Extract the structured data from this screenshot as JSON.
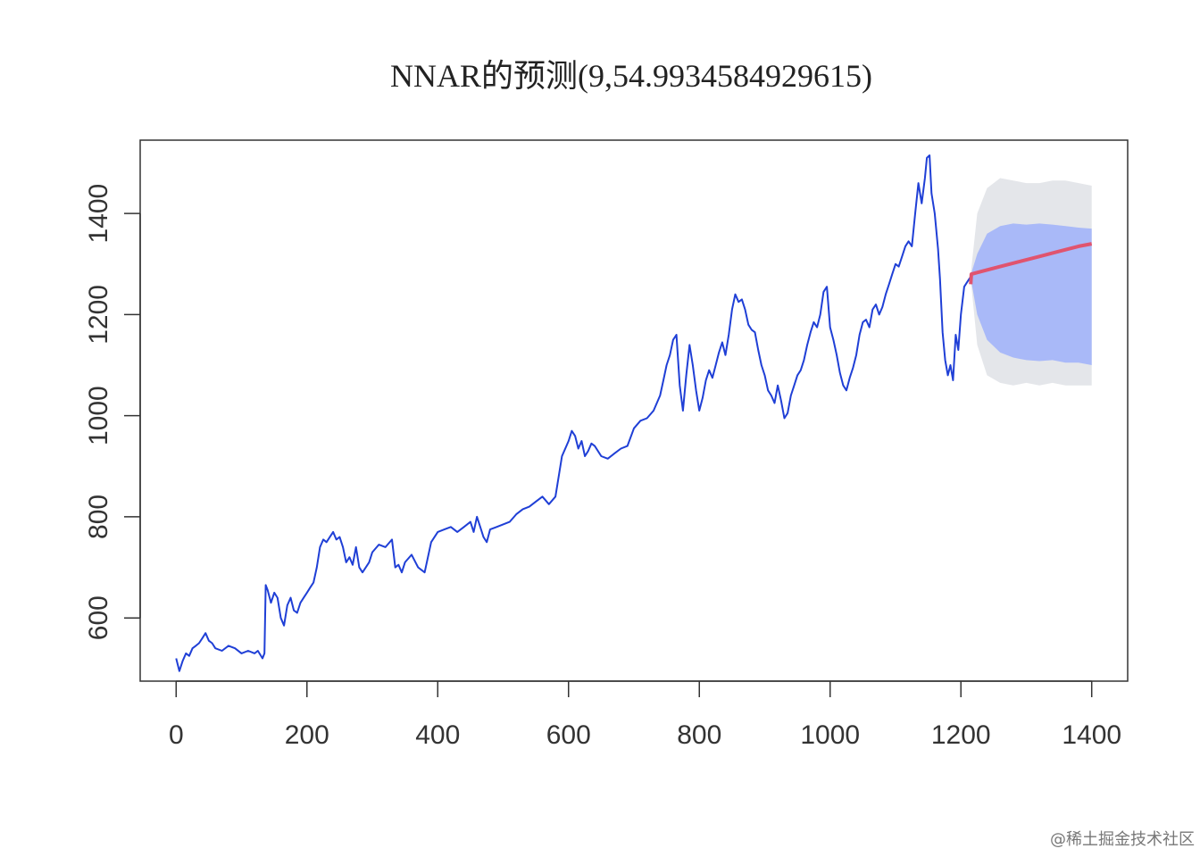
{
  "chart_data": {
    "type": "line",
    "title": "NNAR的预测(9,54.9934584929615)",
    "xlabel": "",
    "ylabel": "",
    "xlim": [
      -55,
      1455
    ],
    "ylim": [
      475,
      1545
    ],
    "x_ticks": [
      0,
      200,
      400,
      600,
      800,
      1000,
      1200,
      1400
    ],
    "y_ticks": [
      600,
      800,
      1000,
      1200,
      1400
    ],
    "grid": false,
    "legend": "none",
    "series": [
      {
        "role": "observed",
        "color": "#1f3fd6",
        "points": [
          [
            0,
            520
          ],
          [
            5,
            495
          ],
          [
            10,
            515
          ],
          [
            15,
            530
          ],
          [
            20,
            525
          ],
          [
            25,
            540
          ],
          [
            30,
            545
          ],
          [
            35,
            550
          ],
          [
            40,
            560
          ],
          [
            45,
            570
          ],
          [
            50,
            555
          ],
          [
            55,
            550
          ],
          [
            60,
            540
          ],
          [
            70,
            535
          ],
          [
            80,
            545
          ],
          [
            90,
            540
          ],
          [
            100,
            530
          ],
          [
            110,
            535
          ],
          [
            120,
            530
          ],
          [
            125,
            535
          ],
          [
            132,
            520
          ],
          [
            135,
            530
          ],
          [
            137,
            665
          ],
          [
            140,
            655
          ],
          [
            145,
            630
          ],
          [
            150,
            650
          ],
          [
            155,
            640
          ],
          [
            160,
            600
          ],
          [
            165,
            585
          ],
          [
            170,
            625
          ],
          [
            175,
            640
          ],
          [
            180,
            615
          ],
          [
            185,
            610
          ],
          [
            190,
            630
          ],
          [
            195,
            640
          ],
          [
            200,
            650
          ],
          [
            205,
            660
          ],
          [
            210,
            670
          ],
          [
            215,
            700
          ],
          [
            220,
            740
          ],
          [
            225,
            755
          ],
          [
            230,
            750
          ],
          [
            235,
            760
          ],
          [
            240,
            770
          ],
          [
            245,
            755
          ],
          [
            250,
            760
          ],
          [
            255,
            740
          ],
          [
            260,
            710
          ],
          [
            265,
            720
          ],
          [
            270,
            705
          ],
          [
            275,
            740
          ],
          [
            280,
            700
          ],
          [
            285,
            690
          ],
          [
            290,
            700
          ],
          [
            295,
            710
          ],
          [
            300,
            730
          ],
          [
            310,
            745
          ],
          [
            320,
            740
          ],
          [
            330,
            755
          ],
          [
            335,
            700
          ],
          [
            340,
            705
          ],
          [
            345,
            690
          ],
          [
            350,
            710
          ],
          [
            360,
            725
          ],
          [
            370,
            700
          ],
          [
            380,
            690
          ],
          [
            390,
            750
          ],
          [
            400,
            770
          ],
          [
            410,
            775
          ],
          [
            420,
            780
          ],
          [
            430,
            770
          ],
          [
            440,
            780
          ],
          [
            450,
            790
          ],
          [
            455,
            770
          ],
          [
            460,
            800
          ],
          [
            465,
            780
          ],
          [
            470,
            760
          ],
          [
            475,
            750
          ],
          [
            480,
            775
          ],
          [
            490,
            780
          ],
          [
            500,
            785
          ],
          [
            510,
            790
          ],
          [
            520,
            805
          ],
          [
            530,
            815
          ],
          [
            540,
            820
          ],
          [
            550,
            830
          ],
          [
            560,
            840
          ],
          [
            570,
            825
          ],
          [
            580,
            840
          ],
          [
            590,
            920
          ],
          [
            600,
            950
          ],
          [
            605,
            970
          ],
          [
            610,
            960
          ],
          [
            615,
            935
          ],
          [
            620,
            950
          ],
          [
            625,
            920
          ],
          [
            630,
            930
          ],
          [
            635,
            945
          ],
          [
            640,
            940
          ],
          [
            650,
            920
          ],
          [
            660,
            915
          ],
          [
            670,
            925
          ],
          [
            680,
            935
          ],
          [
            690,
            940
          ],
          [
            700,
            975
          ],
          [
            710,
            990
          ],
          [
            720,
            995
          ],
          [
            730,
            1010
          ],
          [
            740,
            1040
          ],
          [
            745,
            1070
          ],
          [
            750,
            1100
          ],
          [
            755,
            1120
          ],
          [
            760,
            1150
          ],
          [
            765,
            1160
          ],
          [
            770,
            1060
          ],
          [
            775,
            1010
          ],
          [
            780,
            1080
          ],
          [
            785,
            1140
          ],
          [
            790,
            1100
          ],
          [
            795,
            1050
          ],
          [
            800,
            1010
          ],
          [
            805,
            1035
          ],
          [
            810,
            1070
          ],
          [
            815,
            1090
          ],
          [
            820,
            1075
          ],
          [
            825,
            1100
          ],
          [
            830,
            1125
          ],
          [
            835,
            1145
          ],
          [
            840,
            1120
          ],
          [
            845,
            1160
          ],
          [
            850,
            1210
          ],
          [
            855,
            1240
          ],
          [
            860,
            1225
          ],
          [
            865,
            1230
          ],
          [
            870,
            1210
          ],
          [
            875,
            1180
          ],
          [
            880,
            1170
          ],
          [
            885,
            1165
          ],
          [
            890,
            1130
          ],
          [
            895,
            1100
          ],
          [
            900,
            1080
          ],
          [
            905,
            1050
          ],
          [
            910,
            1040
          ],
          [
            915,
            1025
          ],
          [
            920,
            1060
          ],
          [
            925,
            1030
          ],
          [
            930,
            995
          ],
          [
            935,
            1005
          ],
          [
            940,
            1040
          ],
          [
            945,
            1060
          ],
          [
            950,
            1080
          ],
          [
            955,
            1090
          ],
          [
            960,
            1110
          ],
          [
            965,
            1140
          ],
          [
            970,
            1165
          ],
          [
            975,
            1185
          ],
          [
            980,
            1175
          ],
          [
            985,
            1200
          ],
          [
            990,
            1245
          ],
          [
            995,
            1255
          ],
          [
            1000,
            1175
          ],
          [
            1005,
            1150
          ],
          [
            1010,
            1120
          ],
          [
            1015,
            1085
          ],
          [
            1020,
            1060
          ],
          [
            1025,
            1050
          ],
          [
            1030,
            1075
          ],
          [
            1035,
            1095
          ],
          [
            1040,
            1120
          ],
          [
            1045,
            1160
          ],
          [
            1050,
            1185
          ],
          [
            1055,
            1190
          ],
          [
            1060,
            1175
          ],
          [
            1065,
            1210
          ],
          [
            1070,
            1220
          ],
          [
            1075,
            1200
          ],
          [
            1080,
            1215
          ],
          [
            1085,
            1240
          ],
          [
            1090,
            1260
          ],
          [
            1095,
            1280
          ],
          [
            1100,
            1300
          ],
          [
            1105,
            1295
          ],
          [
            1110,
            1315
          ],
          [
            1115,
            1335
          ],
          [
            1120,
            1345
          ],
          [
            1125,
            1335
          ],
          [
            1130,
            1400
          ],
          [
            1135,
            1460
          ],
          [
            1140,
            1420
          ],
          [
            1145,
            1470
          ],
          [
            1148,
            1510
          ],
          [
            1152,
            1515
          ],
          [
            1155,
            1440
          ],
          [
            1160,
            1400
          ],
          [
            1165,
            1330
          ],
          [
            1168,
            1270
          ],
          [
            1172,
            1165
          ],
          [
            1176,
            1110
          ],
          [
            1180,
            1080
          ],
          [
            1184,
            1100
          ],
          [
            1188,
            1070
          ],
          [
            1192,
            1160
          ],
          [
            1196,
            1130
          ],
          [
            1200,
            1200
          ],
          [
            1205,
            1255
          ],
          [
            1210,
            1265
          ],
          [
            1215,
            1275
          ]
        ]
      },
      {
        "role": "forecast",
        "color": "#e0546f",
        "x_start": 1215,
        "x_end": 1400,
        "points": [
          [
            1215,
            1260
          ],
          [
            1216,
            1280
          ],
          [
            1230,
            1285
          ],
          [
            1260,
            1295
          ],
          [
            1290,
            1305
          ],
          [
            1320,
            1315
          ],
          [
            1350,
            1325
          ],
          [
            1380,
            1335
          ],
          [
            1400,
            1340
          ]
        ]
      }
    ],
    "intervals": [
      {
        "level": "95%",
        "color": "#e4e6ea",
        "upper": [
          [
            1215,
            1280
          ],
          [
            1225,
            1400
          ],
          [
            1240,
            1450
          ],
          [
            1260,
            1470
          ],
          [
            1280,
            1465
          ],
          [
            1300,
            1460
          ],
          [
            1320,
            1460
          ],
          [
            1340,
            1465
          ],
          [
            1360,
            1465
          ],
          [
            1380,
            1460
          ],
          [
            1400,
            1455
          ]
        ],
        "lower": [
          [
            1215,
            1270
          ],
          [
            1225,
            1140
          ],
          [
            1240,
            1080
          ],
          [
            1260,
            1065
          ],
          [
            1280,
            1060
          ],
          [
            1300,
            1065
          ],
          [
            1320,
            1060
          ],
          [
            1340,
            1065
          ],
          [
            1360,
            1060
          ],
          [
            1380,
            1060
          ],
          [
            1400,
            1060
          ]
        ]
      },
      {
        "level": "80%",
        "color": "#a9b9f8",
        "upper": [
          [
            1215,
            1278
          ],
          [
            1225,
            1320
          ],
          [
            1240,
            1360
          ],
          [
            1260,
            1375
          ],
          [
            1280,
            1380
          ],
          [
            1300,
            1378
          ],
          [
            1320,
            1380
          ],
          [
            1340,
            1378
          ],
          [
            1360,
            1375
          ],
          [
            1380,
            1372
          ],
          [
            1400,
            1370
          ]
        ],
        "lower": [
          [
            1215,
            1272
          ],
          [
            1225,
            1200
          ],
          [
            1240,
            1150
          ],
          [
            1260,
            1125
          ],
          [
            1280,
            1115
          ],
          [
            1300,
            1110
          ],
          [
            1320,
            1108
          ],
          [
            1340,
            1110
          ],
          [
            1360,
            1105
          ],
          [
            1380,
            1105
          ],
          [
            1400,
            1100
          ]
        ]
      }
    ]
  },
  "watermark": "@稀土掘金技术社区"
}
